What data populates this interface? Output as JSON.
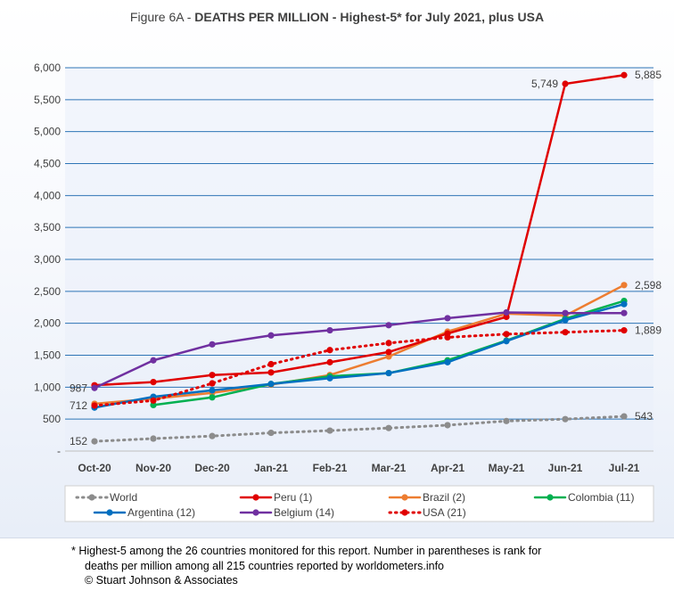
{
  "figure_label": "Figure 6A - ",
  "figure_title_bold": "DEATHS PER MILLION - Highest-5* for July 2021, plus USA",
  "footnote": {
    "line1": "* Highest-5 among the 26 countries monitored for this report. Number in parentheses is rank for",
    "line2": "deaths per million among all 215 countries reported by worldometers.info",
    "line3": "© Stuart Johnson & Associates"
  },
  "chart_data": {
    "type": "line",
    "title": "Figure 6A - DEATHS PER MILLION - Highest-5* for July 2021, plus USA",
    "categories": [
      "Oct-20",
      "Nov-20",
      "Dec-20",
      "Jan-21",
      "Feb-21",
      "Mar-21",
      "Apr-21",
      "May-21",
      "Jun-21",
      "Jul-21"
    ],
    "ylim": [
      0,
      6000
    ],
    "yticks": [
      0,
      500,
      1000,
      1500,
      2000,
      2500,
      3000,
      3500,
      4000,
      4500,
      5000,
      5500,
      6000
    ],
    "ytick_labels": [
      "-",
      "500",
      "1,000",
      "1,500",
      "2,000",
      "2,500",
      "3,000",
      "3,500",
      "4,000",
      "4,500",
      "5,000",
      "5,500",
      "6,000"
    ],
    "grid": true,
    "legend_position": "bottom",
    "series": [
      {
        "name": "World",
        "color": "#8c8c8c",
        "style": "dotted",
        "marker": true,
        "values": [
          152,
          195,
          235,
          285,
          320,
          360,
          405,
          470,
          500,
          543
        ]
      },
      {
        "name": "Peru (1)",
        "color": "#e00000",
        "style": "solid",
        "marker": true,
        "values": [
          1030,
          1080,
          1190,
          1230,
          1390,
          1550,
          1840,
          2100,
          5749,
          5885
        ]
      },
      {
        "name": "Brazil (2)",
        "color": "#ed7d31",
        "style": "solid",
        "marker": true,
        "values": [
          740,
          820,
          910,
          1040,
          1190,
          1480,
          1870,
          2150,
          2120,
          2598
        ]
      },
      {
        "name": "Colombia (11)",
        "color": "#00b050",
        "style": "solid",
        "marker": true,
        "values": [
          null,
          720,
          840,
          1050,
          1170,
          1220,
          1420,
          1730,
          2070,
          2350
        ]
      },
      {
        "name": "Argentina (12)",
        "color": "#0070c0",
        "style": "solid",
        "marker": true,
        "values": [
          680,
          850,
          950,
          1050,
          1140,
          1220,
          1390,
          1720,
          2050,
          2300
        ]
      },
      {
        "name": "Belgium (14)",
        "color": "#7030a0",
        "style": "solid",
        "marker": true,
        "values": [
          987,
          1420,
          1670,
          1810,
          1890,
          1970,
          2080,
          2170,
          2160,
          2160
        ]
      },
      {
        "name": "USA (21)",
        "color": "#e00000",
        "style": "dotted",
        "marker": true,
        "values": [
          712,
          790,
          1060,
          1360,
          1580,
          1690,
          1780,
          1830,
          1860,
          1889
        ]
      }
    ],
    "annotations": [
      {
        "series": "World",
        "index": 0,
        "text": "152",
        "side": "left"
      },
      {
        "series": "World",
        "index": 9,
        "text": "543",
        "side": "right"
      },
      {
        "series": "Belgium (14)",
        "index": 0,
        "text": "987",
        "side": "left"
      },
      {
        "series": "USA (21)",
        "index": 0,
        "text": "712",
        "side": "left"
      },
      {
        "series": "Peru (1)",
        "index": 8,
        "text": "5,749",
        "side": "left"
      },
      {
        "series": "Peru (1)",
        "index": 9,
        "text": "5,885",
        "side": "right"
      },
      {
        "series": "Brazil (2)",
        "index": 9,
        "text": "2,598",
        "side": "right"
      },
      {
        "series": "USA (21)",
        "index": 9,
        "text": "1,889",
        "side": "right"
      }
    ]
  }
}
